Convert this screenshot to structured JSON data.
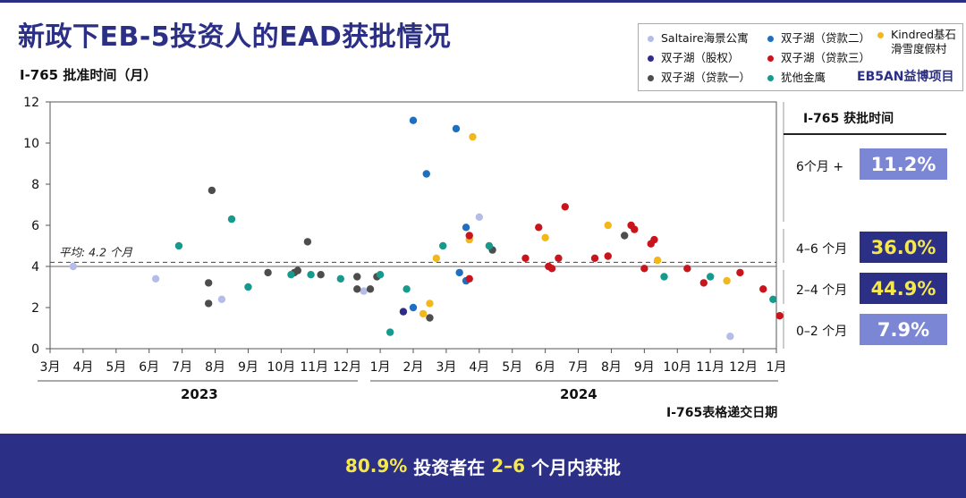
{
  "header": {
    "title": "新政下EB-5投资人的EAD获批情况",
    "y_axis_title": "I-765 批准时间（月）",
    "brand": "EB5AN益博项目"
  },
  "legend": [
    {
      "name": "Saltaire海景公寓",
      "color": "#b3bde8"
    },
    {
      "name": "双子湖（贷款二）",
      "color": "#1f6fc0"
    },
    {
      "name": "Kindred基石滑雪度假村",
      "color": "#f2b81b"
    },
    {
      "name": "双子湖（股权）",
      "color": "#2e2c8a"
    },
    {
      "name": "双子湖（贷款三）",
      "color": "#c9141c"
    },
    {
      "name": "双子湖（贷款一）",
      "color": "#4d4d4d"
    },
    {
      "name": "犹他金鹰",
      "color": "#17998c"
    }
  ],
  "side_panel": {
    "title": "I-765 获批时间",
    "bands": [
      {
        "label": "6个月 +",
        "value": "11.2%",
        "bg": "#7b86d4",
        "fg": "#ffffff"
      },
      {
        "label": "4–6 个月",
        "value": "36.0%",
        "bg": "#2b2f86",
        "fg": "#f5e84a"
      },
      {
        "label": "2–4 个月",
        "value": "44.9%",
        "bg": "#2b2f86",
        "fg": "#f5e84a"
      },
      {
        "label": "0–2 个月",
        "value": "7.9%",
        "bg": "#7b86d4",
        "fg": "#ffffff"
      }
    ]
  },
  "x_axis": {
    "title": "I-765表格递交日期",
    "years": [
      "2023",
      "2024"
    ]
  },
  "banner": {
    "pct": "80.9%",
    "text1": " 投资者在 ",
    "range": "2–6",
    "text2": " 个月内获批"
  },
  "chart_data": {
    "type": "scatter",
    "ylim": [
      0,
      12
    ],
    "yticks": [
      0,
      2,
      4,
      6,
      8,
      10,
      12
    ],
    "xlim": [
      0,
      22
    ],
    "month_ticks": [
      "3月",
      "4月",
      "5月",
      "6月",
      "7月",
      "8月",
      "9月",
      "10月",
      "11月",
      "12月",
      "1月",
      "2月",
      "3月",
      "4月",
      "5月",
      "6月",
      "7月",
      "8月",
      "9月",
      "10月",
      "11月",
      "12月",
      "1月"
    ],
    "average": {
      "value": 4.2,
      "label": "平均: 4.2 个月"
    },
    "reference_line": 4.0,
    "series": [
      {
        "name": "Saltaire海景公寓",
        "color": "#b3bde8",
        "points": [
          [
            0.7,
            4.0
          ],
          [
            3.2,
            3.4
          ],
          [
            5.2,
            2.4
          ],
          [
            9.5,
            2.8
          ],
          [
            13.0,
            6.4
          ],
          [
            20.6,
            0.6
          ]
        ]
      },
      {
        "name": "双子湖（贷款二）",
        "color": "#1f6fc0",
        "points": [
          [
            11.0,
            11.1
          ],
          [
            11.4,
            8.5
          ],
          [
            11.0,
            2.0
          ],
          [
            12.3,
            10.7
          ],
          [
            12.4,
            3.7
          ],
          [
            12.6,
            3.3
          ],
          [
            12.6,
            5.9
          ]
        ]
      },
      {
        "name": "Kindred基石滑雪度假村",
        "color": "#f2b81b",
        "points": [
          [
            12.8,
            10.3
          ],
          [
            11.3,
            1.7
          ],
          [
            11.5,
            2.2
          ],
          [
            11.7,
            4.4
          ],
          [
            12.7,
            5.3
          ],
          [
            15.0,
            5.4
          ],
          [
            16.9,
            6.0
          ],
          [
            18.4,
            4.3
          ],
          [
            20.5,
            3.3
          ]
        ]
      },
      {
        "name": "双子湖（股权）",
        "color": "#2e2c8a",
        "points": [
          [
            10.7,
            1.8
          ]
        ]
      },
      {
        "name": "双子湖（贷款三）",
        "color": "#c9141c",
        "points": [
          [
            12.7,
            5.5
          ],
          [
            12.7,
            3.4
          ],
          [
            14.4,
            4.4
          ],
          [
            14.8,
            5.9
          ],
          [
            15.1,
            4.0
          ],
          [
            15.2,
            3.9
          ],
          [
            15.4,
            4.4
          ],
          [
            15.6,
            6.9
          ],
          [
            16.5,
            4.4
          ],
          [
            16.9,
            4.5
          ],
          [
            17.6,
            6.0
          ],
          [
            17.7,
            5.8
          ],
          [
            18.0,
            3.9
          ],
          [
            18.2,
            5.1
          ],
          [
            18.3,
            5.3
          ],
          [
            19.3,
            3.9
          ],
          [
            19.8,
            3.2
          ],
          [
            20.9,
            3.7
          ],
          [
            21.6,
            2.9
          ],
          [
            22.1,
            1.6
          ]
        ]
      },
      {
        "name": "双子湖（贷款一）",
        "color": "#4d4d4d",
        "points": [
          [
            4.8,
            3.2
          ],
          [
            4.8,
            2.2
          ],
          [
            4.9,
            7.7
          ],
          [
            6.6,
            3.7
          ],
          [
            7.4,
            3.7
          ],
          [
            7.5,
            3.8
          ],
          [
            7.8,
            5.2
          ],
          [
            8.2,
            3.6
          ],
          [
            9.3,
            2.9
          ],
          [
            9.3,
            3.5
          ],
          [
            9.7,
            2.9
          ],
          [
            9.9,
            3.5
          ],
          [
            11.5,
            1.5
          ],
          [
            13.4,
            4.8
          ],
          [
            17.4,
            5.5
          ]
        ]
      },
      {
        "name": "犹他金鹰",
        "color": "#17998c",
        "points": [
          [
            3.9,
            5.0
          ],
          [
            5.5,
            6.3
          ],
          [
            6.0,
            3.0
          ],
          [
            7.3,
            3.6
          ],
          [
            7.9,
            3.6
          ],
          [
            8.8,
            3.4
          ],
          [
            10.0,
            3.6
          ],
          [
            10.3,
            0.8
          ],
          [
            10.8,
            2.9
          ],
          [
            11.9,
            5.0
          ],
          [
            13.3,
            5.0
          ],
          [
            18.6,
            3.5
          ],
          [
            20.0,
            3.5
          ],
          [
            21.9,
            2.4
          ]
        ]
      }
    ]
  }
}
